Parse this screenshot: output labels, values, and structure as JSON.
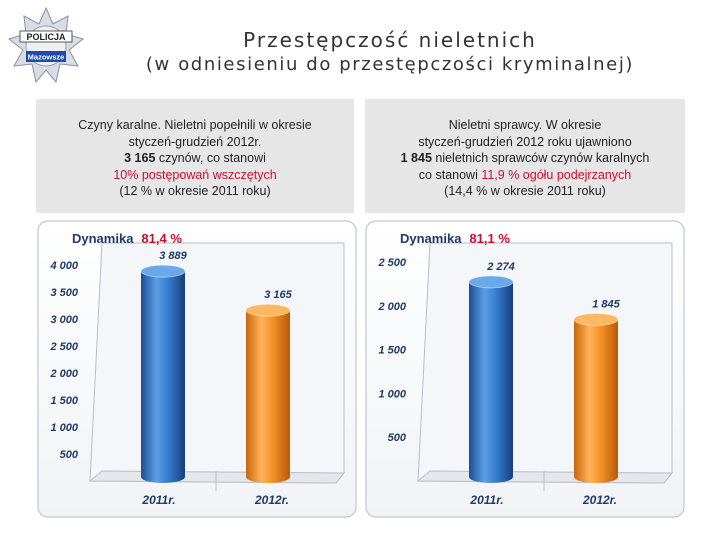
{
  "logo": {
    "top_text": "POLICJA",
    "bottom_text": "Mazowsze"
  },
  "title": {
    "line1": "Przestępczość nieletnich",
    "line2": "(w odniesieniu do przestępczości kryminalnej)"
  },
  "box_left": {
    "line1": "Czyny karalne. Nieletni popełnili w okresie",
    "line2": "styczeń-grudzień 2012r.",
    "line3_bold": "3 165",
    "line3_rest": " czynów, co stanowi",
    "line4_red": "10%  postępowań wszczętych",
    "line5": "(12 % w okresie 2011 roku)"
  },
  "box_right": {
    "line1": "Nieletni sprawcy. W okresie",
    "line2": "styczeń-grudzień 2012 roku ujawniono",
    "line3_bold": "1 845",
    "line3_rest": " nieletnich sprawców czynów karalnych",
    "line4_pre": "co stanowi  ",
    "line4_red": "11,9 % ogółu podejrzanych",
    "line5": "(14,4 %  w okresie 2011 roku)"
  },
  "colors": {
    "blue": "#2f74c6",
    "orange": "#f08a1c",
    "accent_red": "#c8102e",
    "label_navy": "#1f3a68"
  },
  "chart_data": [
    {
      "type": "bar",
      "dynamics_label": "Dynamika",
      "dynamics_value": "81,4 %",
      "categories": [
        "2011r.",
        "2012r."
      ],
      "values": [
        3889,
        3165
      ],
      "value_labels": [
        "3 889",
        "3 165"
      ],
      "yticks": [
        500,
        1000,
        1500,
        2000,
        2500,
        3000,
        3500,
        4000
      ],
      "ytick_labels": [
        "500",
        "1 000",
        "1 500",
        "2 000",
        "2 500",
        "3 000",
        "3 500",
        "4 000"
      ],
      "ylim": [
        0,
        4300
      ]
    },
    {
      "type": "bar",
      "dynamics_label": "Dynamika",
      "dynamics_value": "81,1 %",
      "categories": [
        "2011r.",
        "2012r."
      ],
      "values": [
        2274,
        1845
      ],
      "value_labels": [
        "2 274",
        "1 845"
      ],
      "yticks": [
        500,
        1000,
        1500,
        2000,
        2500
      ],
      "ytick_labels": [
        "500",
        "1 000",
        "1 500",
        "2 000",
        "2 500"
      ],
      "ylim": [
        0,
        2650
      ]
    }
  ]
}
